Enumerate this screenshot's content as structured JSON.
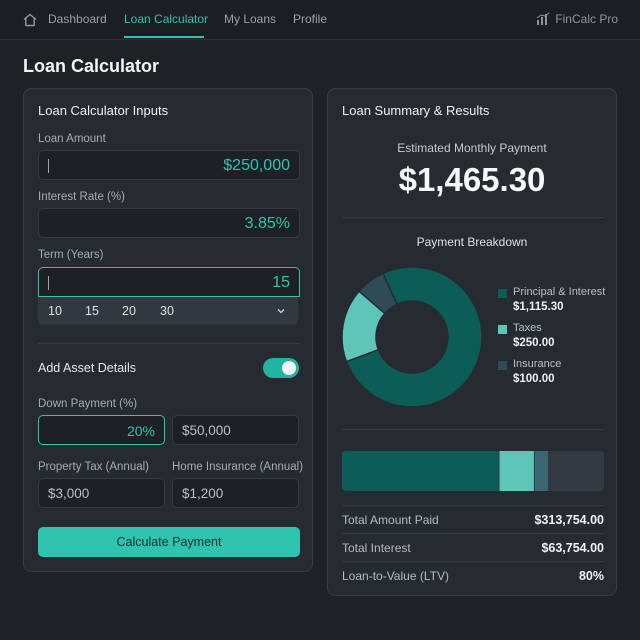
{
  "nav": {
    "items": [
      {
        "label": "Dashboard",
        "active": false
      },
      {
        "label": "Loan Calculator",
        "active": true
      },
      {
        "label": "My Loans",
        "active": false
      },
      {
        "label": "Profile",
        "active": false
      }
    ],
    "brand": "FinCalc Pro"
  },
  "page": {
    "title": "Loan Calculator"
  },
  "inputs": {
    "title": "Loan Calculator Inputs",
    "loan_amount": {
      "label": "Loan Amount",
      "value": "$250,000"
    },
    "interest_rate": {
      "label": "Interest Rate (%)",
      "value": "3.85%"
    },
    "term": {
      "label": "Term (Years)",
      "value": "15",
      "options": [
        "10",
        "15",
        "20",
        "30"
      ]
    },
    "asset_toggle": {
      "label": "Add Asset Details",
      "on": true
    },
    "down_payment": {
      "label": "Down Payment (%)",
      "percent": "20%",
      "amount": "$50,000"
    },
    "property_tax": {
      "label": "Property Tax (Annual)",
      "value": "$3,000"
    },
    "home_insurance": {
      "label": "Home Insurance (Annual)",
      "value": "$1,200"
    },
    "calculate_label": "Calculate Payment"
  },
  "results": {
    "title": "Loan Summary & Results",
    "estimated_label": "Estimated Monthly Payment",
    "estimated_value": "$1,465.30",
    "breakdown_title": "Payment Breakdown",
    "breakdown": [
      {
        "name": "Principal & Interest",
        "value": "$1,115.30",
        "amount": 1115.3,
        "color": "#0c5c57"
      },
      {
        "name": "Taxes",
        "value": "$250.00",
        "amount": 250.0,
        "color": "#5ec6b9"
      },
      {
        "name": "Insurance",
        "value": "$100.00",
        "amount": 100.0,
        "color": "#2f4b58"
      }
    ],
    "summary": [
      {
        "label": "Total Amount Paid",
        "value": "$313,754.00"
      },
      {
        "label": "Total Interest",
        "value": "$63,754.00"
      },
      {
        "label": "Loan-to-Value (LTV)",
        "value": "80%"
      }
    ]
  },
  "colors": {
    "accent": "#2ec4b0",
    "background": "#1e2227",
    "panel": "#262b31"
  }
}
